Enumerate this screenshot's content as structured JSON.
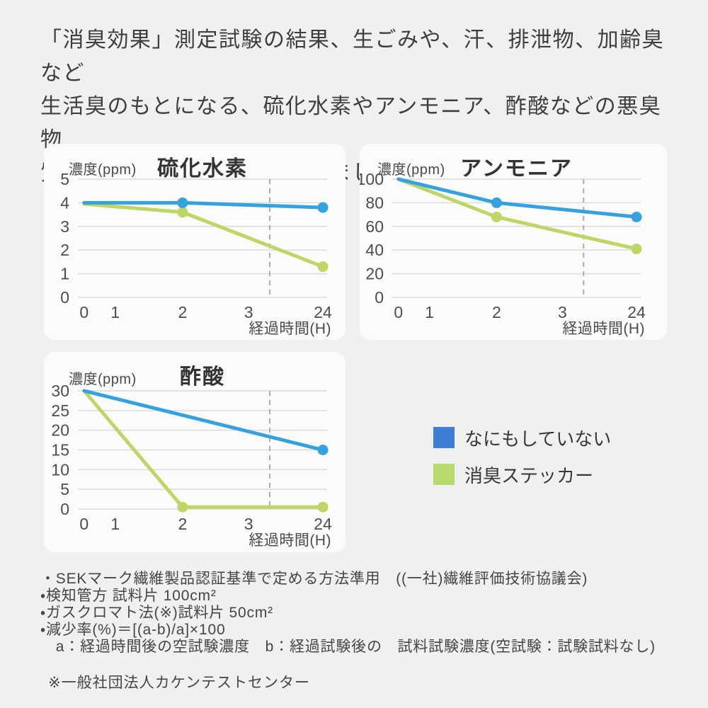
{
  "page": {
    "background": "#F0F0EE",
    "panel_background": "#FBFBFA"
  },
  "header": {
    "lines": [
      "「消臭効果」測定試験の結果、生ごみや、汗、排泄物、加齢臭など",
      "生活臭のもとになる、硫化水素やアンモニア、酢酸などの悪臭物",
      "質に対して消臭効果を発揮しました。"
    ]
  },
  "colors": {
    "line_blue": "#35A2DF",
    "line_green": "#BDD666",
    "legend_blue": "#3E7ED6",
    "legend_green": "#B7DA6E",
    "grid": "#DBDBDB",
    "dashed": "#ABABAB",
    "tick_text": "#4D4D4D"
  },
  "chart_data": [
    {
      "type": "line",
      "title": "硫化水素",
      "ylabel": "濃度(ppm)",
      "xlabel": "経過時間(H)",
      "x_categories": [
        0,
        1,
        2,
        3,
        24
      ],
      "divider_after_x": 3,
      "ylim": [
        0,
        5
      ],
      "yticks": [
        0,
        1,
        2,
        3,
        4,
        5
      ],
      "grid": true,
      "series": [
        {
          "name": "なにもしていない",
          "color": "#35A2DF",
          "points": [
            {
              "x": 0,
              "y": 4.0,
              "dot": false
            },
            {
              "x": 2,
              "y": 4.0,
              "dot": true
            },
            {
              "x": 24,
              "y": 3.8,
              "dot": true
            }
          ]
        },
        {
          "name": "消臭ステッカー",
          "color": "#BDD666",
          "points": [
            {
              "x": 0,
              "y": 3.95,
              "dot": false
            },
            {
              "x": 2,
              "y": 3.6,
              "dot": true
            },
            {
              "x": 24,
              "y": 1.3,
              "dot": true
            }
          ]
        }
      ]
    },
    {
      "type": "line",
      "title": "アンモニア",
      "ylabel": "濃度(ppm)",
      "xlabel": "経過時間(H)",
      "x_categories": [
        0,
        1,
        2,
        3,
        24
      ],
      "divider_after_x": 3,
      "ylim": [
        0,
        100
      ],
      "yticks": [
        0,
        20,
        40,
        60,
        80,
        100
      ],
      "grid": true,
      "series": [
        {
          "name": "なにもしていない",
          "color": "#35A2DF",
          "points": [
            {
              "x": 0,
              "y": 100,
              "dot": false
            },
            {
              "x": 2,
              "y": 80,
              "dot": true
            },
            {
              "x": 24,
              "y": 68,
              "dot": true
            }
          ]
        },
        {
          "name": "消臭ステッカー",
          "color": "#BDD666",
          "points": [
            {
              "x": 0,
              "y": 100,
              "dot": false
            },
            {
              "x": 2,
              "y": 68,
              "dot": true
            },
            {
              "x": 24,
              "y": 41,
              "dot": true
            }
          ]
        }
      ]
    },
    {
      "type": "line",
      "title": "酢酸",
      "ylabel": "濃度(ppm)",
      "xlabel": "経過時間(H)",
      "x_categories": [
        0,
        1,
        2,
        3,
        24
      ],
      "divider_after_x": 3,
      "ylim": [
        0,
        30
      ],
      "yticks": [
        0,
        5,
        10,
        15,
        20,
        25,
        30
      ],
      "grid": true,
      "series": [
        {
          "name": "なにもしていない",
          "color": "#35A2DF",
          "points": [
            {
              "x": 0,
              "y": 30,
              "dot": false
            },
            {
              "x": 24,
              "y": 15,
              "dot": true
            }
          ]
        },
        {
          "name": "消臭ステッカー",
          "color": "#BDD666",
          "points": [
            {
              "x": 0,
              "y": 30,
              "dot": false
            },
            {
              "x": 2,
              "y": 0.5,
              "dot": true
            },
            {
              "x": 24,
              "y": 0.5,
              "dot": true
            }
          ]
        }
      ]
    }
  ],
  "legend": {
    "items": [
      {
        "label": "なにもしていない",
        "color": "#3E7ED6"
      },
      {
        "label": "消臭ステッカー",
        "color": "#B7DA6E"
      }
    ]
  },
  "footnotes": {
    "lines": [
      "・SEKマーク繊維製品認証基準で定める方法準用　((一社)繊維評価技術協議会)",
      "・検知管方 試料片 100cm²",
      "・ガスクロマト法(※)試料片 50cm²",
      "・減少率(%)＝[(a-b)/a]×100",
      "　a：経過時間後の空試験濃度　b：経過試験後の　試料試験濃度(空試験：試験試料なし)"
    ],
    "note": "※一般社団法人カケンテストセンター"
  }
}
